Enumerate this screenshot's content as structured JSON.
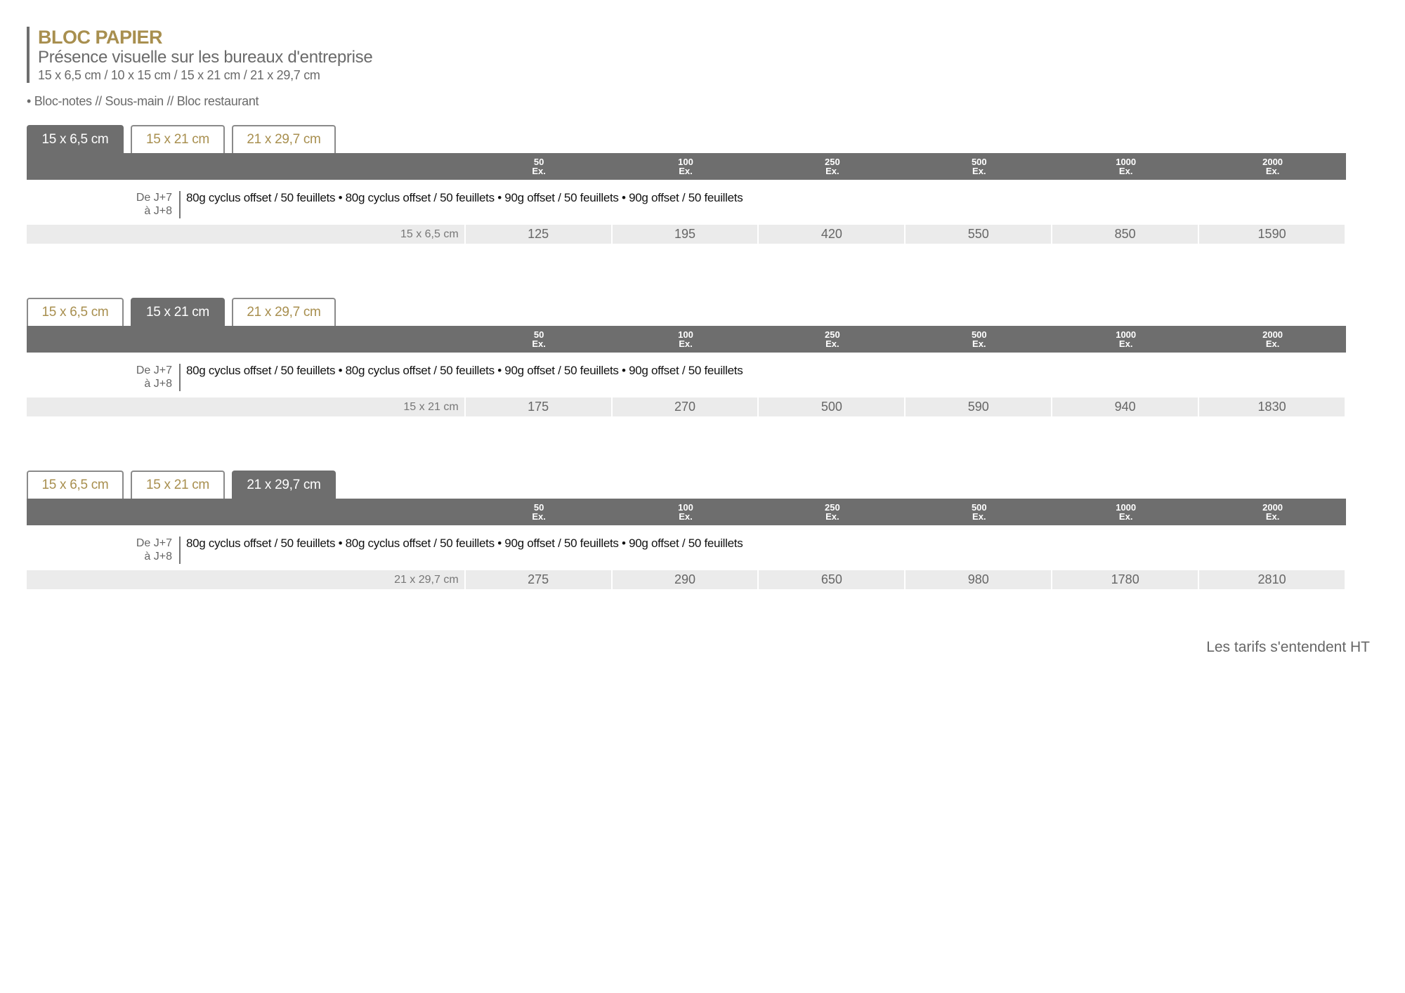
{
  "header": {
    "title": "BLOC PAPIER",
    "subtitle": "Présence visuelle sur les bureaux d'entreprise",
    "sizes": "15 x 6,5 cm / 10 x 15 cm / 15 x 21 cm / 21 x 29,7 cm"
  },
  "bullets": "• Bloc-notes // Sous-main // Bloc restaurant",
  "tab_labels": [
    "15 x 6,5 cm",
    "15 x 21 cm",
    "21 x 29,7 cm"
  ],
  "quantities": [
    {
      "qty": "50",
      "unit": "Ex."
    },
    {
      "qty": "100",
      "unit": "Ex."
    },
    {
      "qty": "250",
      "unit": "Ex."
    },
    {
      "qty": "500",
      "unit": "Ex."
    },
    {
      "qty": "1000",
      "unit": "Ex."
    },
    {
      "qty": "2000",
      "unit": "Ex."
    }
  ],
  "blocks": [
    {
      "active_tab": 0,
      "delay": [
        "De J+7",
        "à J+8"
      ],
      "spec": "80g cyclus offset / 50 feuillets  •  80g cyclus offset / 50 feuillets  •  90g offset / 50 feuillets  •  90g offset / 50 feuillets",
      "size_label": "15 x 6,5 cm",
      "prices": [
        "125",
        "195",
        "420",
        "550",
        "850",
        "1590"
      ]
    },
    {
      "active_tab": 1,
      "delay": [
        "De J+7",
        "à J+8"
      ],
      "spec": "80g cyclus offset / 50 feuillets  •  80g cyclus offset / 50 feuillets  •  90g offset / 50 feuillets  •  90g offset / 50 feuillets",
      "size_label": "15 x 21 cm",
      "prices": [
        "175",
        "270",
        "500",
        "590",
        "940",
        "1830"
      ]
    },
    {
      "active_tab": 2,
      "delay": [
        "De J+7",
        "à J+8"
      ],
      "spec": "80g cyclus offset / 50 feuillets  •  80g cyclus offset / 50 feuillets  •  90g offset / 50 feuillets  •  90g offset / 50 feuillets",
      "size_label": "21 x 29,7 cm",
      "prices": [
        "275",
        "290",
        "650",
        "980",
        "1780",
        "2810"
      ]
    }
  ],
  "footer": "Les tarifs s'entendent HT",
  "colors": {
    "accent": "#a88f4f",
    "header_bar": "#6e6e6e",
    "price_row": "#ebebeb"
  }
}
